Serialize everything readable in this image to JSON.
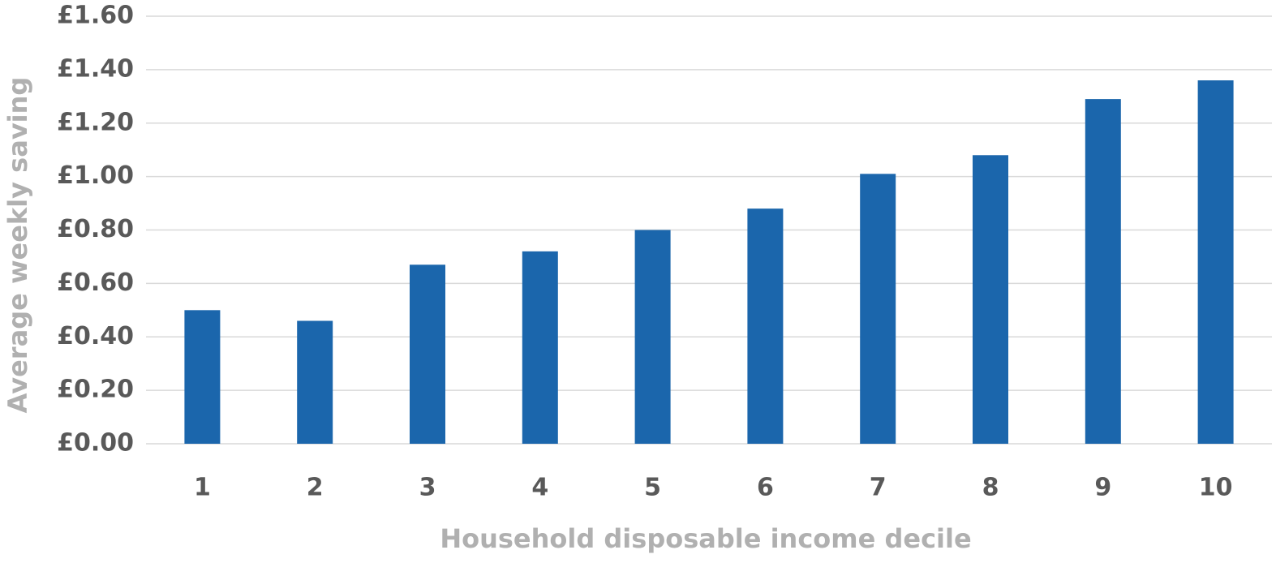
{
  "chart_data": {
    "type": "bar",
    "x_label": "Household disposable income decile",
    "y_label": "Average weekly saving",
    "categories": [
      "1",
      "2",
      "3",
      "4",
      "5",
      "6",
      "7",
      "8",
      "9",
      "10"
    ],
    "values": [
      0.5,
      0.46,
      0.67,
      0.72,
      0.8,
      0.88,
      1.01,
      1.08,
      1.29,
      1.36
    ],
    "color": "#1b66ac",
    "ylim": [
      0,
      1.6
    ],
    "yticks": [
      {
        "value": 0,
        "label": "£0.00"
      },
      {
        "value": 0.2,
        "label": "£0.20"
      },
      {
        "value": 0.4,
        "label": "£0.40"
      },
      {
        "value": 0.6,
        "label": "£0.60"
      },
      {
        "value": 0.8,
        "label": "£0.80"
      },
      {
        "value": 1.0,
        "label": "£1.00"
      },
      {
        "value": 1.2,
        "label": "£1.20"
      },
      {
        "value": 1.4,
        "label": "£1.40"
      },
      {
        "value": 1.6,
        "label": "£1.60"
      }
    ],
    "grid": true
  }
}
